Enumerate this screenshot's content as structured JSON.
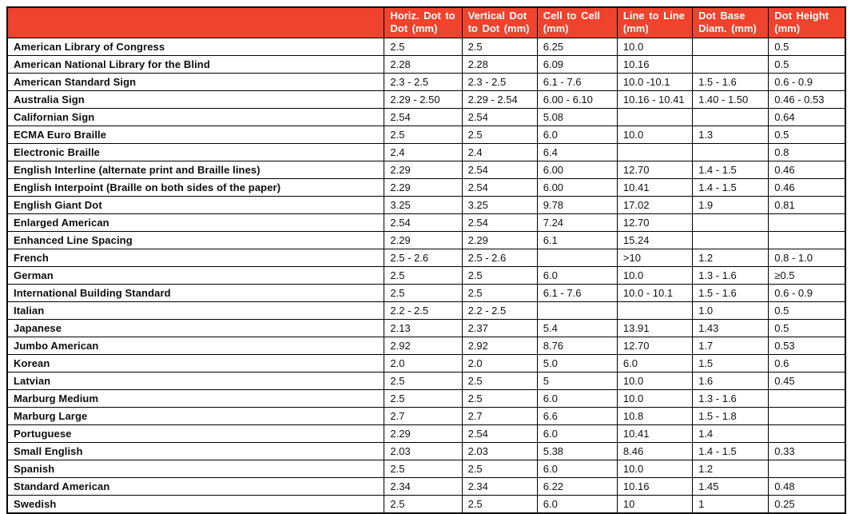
{
  "colors": {
    "header_bg": "#f0432e",
    "header_text": "#ffffff",
    "border": "#000000",
    "body_text": "#111111"
  },
  "table": {
    "columns": [
      "",
      "Horiz. Dot to Dot (mm)",
      "Vertical Dot to Dot (mm)",
      "Cell to Cell (mm)",
      "Line to Line (mm)",
      "Dot Base Diam. (mm)",
      "Dot Height (mm)"
    ],
    "rows": [
      {
        "name": "American Library of Congress",
        "values": [
          "2.5",
          "2.5",
          "6.25",
          "10.0",
          "",
          "0.5"
        ]
      },
      {
        "name": "American National Library for the Blind",
        "values": [
          "2.28",
          "2.28",
          "6.09",
          "10.16",
          "",
          "0.5"
        ]
      },
      {
        "name": "American Standard Sign",
        "values": [
          "2.3 - 2.5",
          "2.3 - 2.5",
          "6.1 - 7.6",
          "10.0 -10.1",
          "1.5 - 1.6",
          "0.6 - 0.9"
        ]
      },
      {
        "name": "Australia Sign",
        "values": [
          "2.29 - 2.50",
          "2.29 - 2.54",
          "6.00 - 6.10",
          "10.16 - 10.41",
          "1.40 - 1.50",
          "0.46 - 0.53"
        ]
      },
      {
        "name": "Californian Sign",
        "values": [
          "2.54",
          "2.54",
          "5.08",
          "",
          "",
          "0.64"
        ]
      },
      {
        "name": "ECMA Euro Braille",
        "values": [
          "2.5",
          "2.5",
          "6.0",
          "10.0",
          "1.3",
          "0.5"
        ]
      },
      {
        "name": "Electronic Braille",
        "values": [
          "2.4",
          "2.4",
          "6.4",
          "",
          "",
          "0.8"
        ]
      },
      {
        "name": "English Interline (alternate print and Braille lines)",
        "values": [
          "2.29",
          "2.54",
          "6.00",
          "12.70",
          "1.4 - 1.5",
          "0.46"
        ]
      },
      {
        "name": "English Interpoint (Braille on both sides of the paper)",
        "values": [
          "2.29",
          "2.54",
          "6.00",
          "10.41",
          "1.4 - 1.5",
          "0.46"
        ]
      },
      {
        "name": "English Giant Dot",
        "values": [
          "3.25",
          "3.25",
          "9.78",
          "17.02",
          "1.9",
          "0.81"
        ]
      },
      {
        "name": "Enlarged American",
        "values": [
          "2.54",
          "2.54",
          "7.24",
          "12.70",
          "",
          ""
        ]
      },
      {
        "name": "Enhanced Line Spacing",
        "values": [
          "2.29",
          "2.29",
          "6.1",
          "15.24",
          "",
          ""
        ]
      },
      {
        "name": "French",
        "values": [
          "2.5 - 2.6",
          "2.5 - 2.6",
          "",
          ">10",
          "1.2",
          "0.8 - 1.0"
        ]
      },
      {
        "name": "German",
        "values": [
          "2.5",
          "2.5",
          "6.0",
          "10.0",
          "1.3 - 1.6",
          "≥0.5"
        ]
      },
      {
        "name": "International Building Standard",
        "values": [
          "2.5",
          "2.5",
          "6.1 - 7.6",
          "10.0 - 10.1",
          "1.5 - 1.6",
          "0.6 - 0.9"
        ]
      },
      {
        "name": "Italian",
        "values": [
          "2.2 - 2.5",
          "2.2 - 2.5",
          "",
          "",
          "1.0",
          "0.5"
        ]
      },
      {
        "name": "Japanese",
        "values": [
          "2.13",
          "2.37",
          "5.4",
          "13.91",
          "1.43",
          "0.5"
        ]
      },
      {
        "name": "Jumbo American",
        "values": [
          "2.92",
          "2.92",
          "8.76",
          "12.70",
          "1.7",
          "0.53"
        ]
      },
      {
        "name": "Korean",
        "values": [
          "2.0",
          "2.0",
          "5.0",
          "6.0",
          "1.5",
          "0.6"
        ]
      },
      {
        "name": "Latvian",
        "values": [
          "2.5",
          "2.5",
          "5",
          "10.0",
          "1.6",
          "0.45"
        ]
      },
      {
        "name": "Marburg Medium",
        "values": [
          "2.5",
          "2.5",
          "6.0",
          "10.0",
          "1.3 - 1.6",
          ""
        ]
      },
      {
        "name": "Marburg Large",
        "values": [
          "2.7",
          "2.7",
          "6.6",
          "10.8",
          "1.5 - 1.8",
          ""
        ]
      },
      {
        "name": "Portuguese",
        "values": [
          "2.29",
          "2.54",
          "6.0",
          "10.41",
          "1.4",
          ""
        ]
      },
      {
        "name": "Small English",
        "values": [
          "2.03",
          "2.03",
          "5.38",
          "8.46",
          "1.4 - 1.5",
          "0.33"
        ]
      },
      {
        "name": "Spanish",
        "values": [
          "2.5",
          "2.5",
          "6.0",
          "10.0",
          "1.2",
          ""
        ]
      },
      {
        "name": "Standard American",
        "values": [
          "2.34",
          "2.34",
          "6.22",
          "10.16",
          "1.45",
          "0.48"
        ]
      },
      {
        "name": "Swedish",
        "values": [
          "2.5",
          "2.5",
          "6.0",
          "10",
          "1",
          "0.25"
        ]
      }
    ]
  }
}
